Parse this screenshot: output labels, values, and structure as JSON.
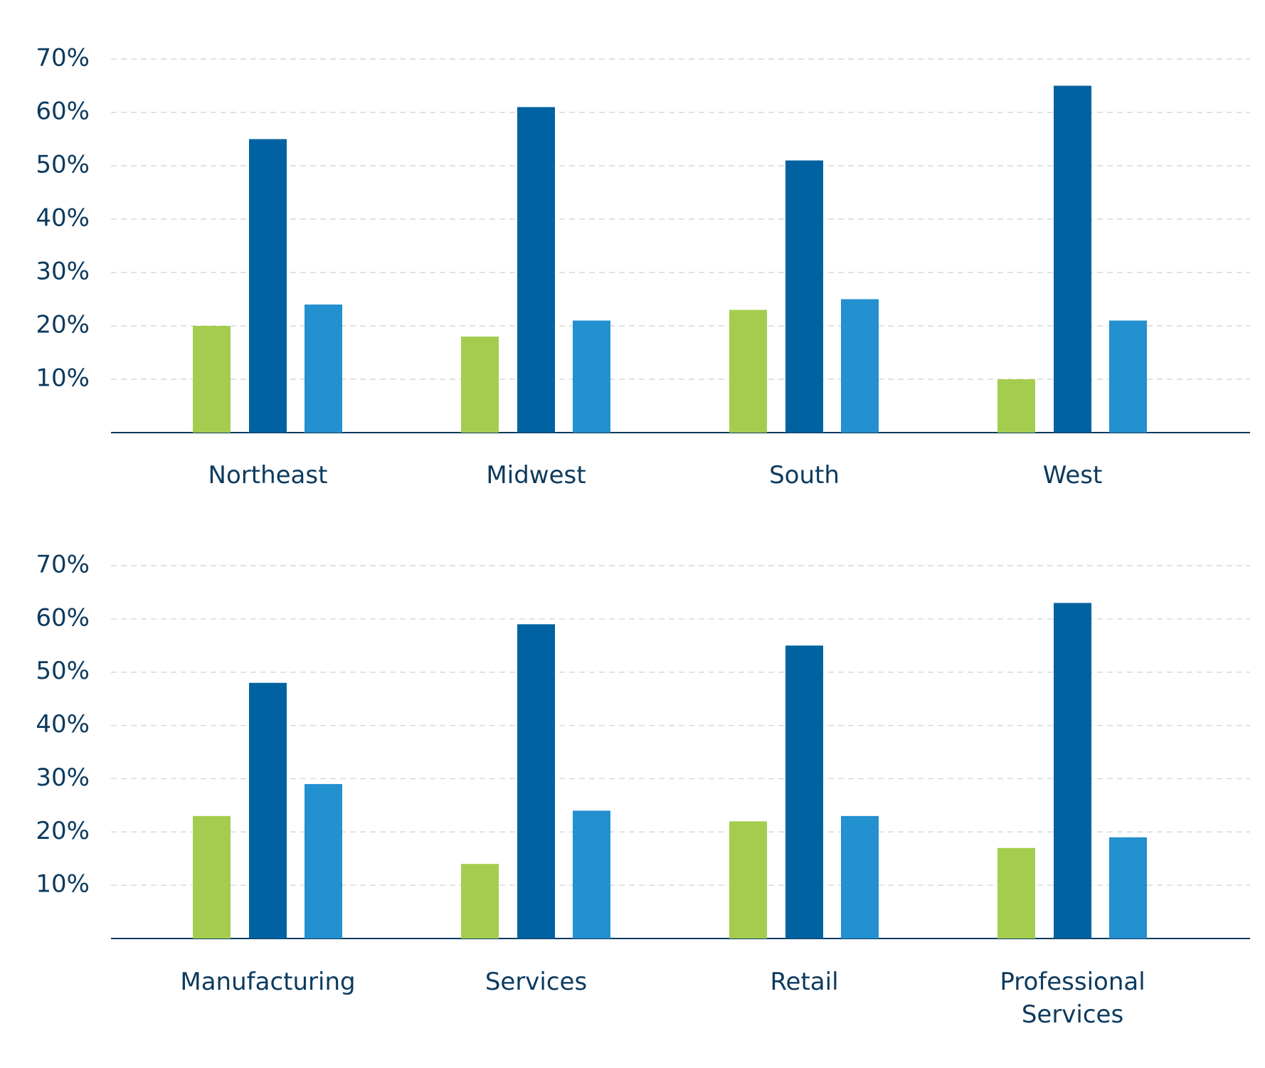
{
  "chart_data": [
    {
      "type": "bar",
      "categories": [
        "Northeast",
        "Midwest",
        "South",
        "West"
      ],
      "series": [
        {
          "color": "#a4cd4f",
          "values": [
            20,
            18,
            23,
            10
          ]
        },
        {
          "color": "#0062a0",
          "values": [
            55,
            61,
            51,
            65
          ]
        },
        {
          "color": "#2390d0",
          "values": [
            24,
            21,
            25,
            21
          ]
        }
      ],
      "ylim": [
        0,
        70
      ],
      "yticks": [
        {
          "value": 10,
          "label": "10%"
        },
        {
          "value": 20,
          "label": "20%"
        },
        {
          "value": 30,
          "label": "30%"
        },
        {
          "value": 40,
          "label": "40%"
        },
        {
          "value": 50,
          "label": "50%"
        },
        {
          "value": 60,
          "label": "60%"
        },
        {
          "value": 70,
          "label": "70%"
        }
      ],
      "grid": true
    },
    {
      "type": "bar",
      "categories": [
        "Manufacturing",
        "Services",
        "Retail",
        "Professional Services"
      ],
      "series": [
        {
          "color": "#a4cd4f",
          "values": [
            23,
            14,
            22,
            17
          ]
        },
        {
          "color": "#0062a0",
          "values": [
            48,
            59,
            55,
            63
          ]
        },
        {
          "color": "#2390d0",
          "values": [
            29,
            24,
            23,
            19
          ]
        }
      ],
      "ylim": [
        0,
        70
      ],
      "yticks": [
        {
          "value": 10,
          "label": "10%"
        },
        {
          "value": 20,
          "label": "20%"
        },
        {
          "value": 30,
          "label": "30%"
        },
        {
          "value": 40,
          "label": "40%"
        },
        {
          "value": 50,
          "label": "50%"
        },
        {
          "value": 60,
          "label": "60%"
        },
        {
          "value": 70,
          "label": "70%"
        }
      ],
      "grid": true
    }
  ]
}
